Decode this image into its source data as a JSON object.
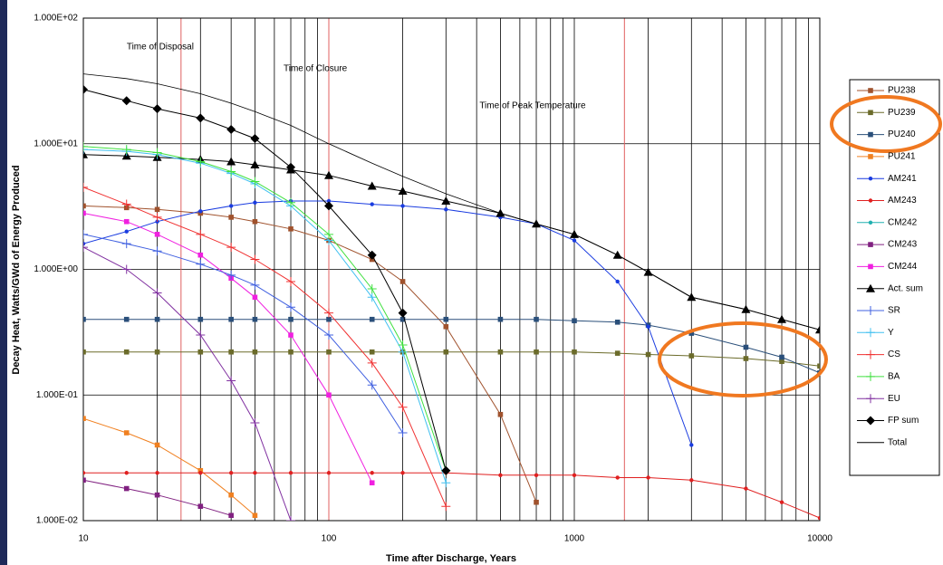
{
  "chart_data": {
    "type": "line",
    "log_x": true,
    "log_y": true,
    "xlabel": "Time after Discharge, Years",
    "ylabel": "Decay Heat, Watts/GWd of Energy Produced",
    "annotations": [
      {
        "text": "Time of Disposal",
        "x": 25
      },
      {
        "text": "Time of Closure",
        "x": 100
      },
      {
        "text": "Time of Peak Temperature",
        "x": 1600
      }
    ],
    "xlim": [
      10,
      10000
    ],
    "ylim": [
      0.01,
      100
    ],
    "xticks": [
      10,
      100,
      1000,
      10000
    ],
    "yticks": [
      {
        "value": 100,
        "label": "1.000E+02"
      },
      {
        "value": 10,
        "label": "1.000E+01"
      },
      {
        "value": 1,
        "label": "1.000E+00"
      },
      {
        "value": 0.1,
        "label": "1.000E-01"
      },
      {
        "value": 0.01,
        "label": "1.000E-02"
      }
    ],
    "x_minor_grid": [
      20,
      30,
      40,
      50,
      60,
      70,
      80,
      90,
      200,
      300,
      400,
      500,
      600,
      700,
      800,
      900,
      2000,
      3000,
      4000,
      5000,
      6000,
      7000,
      8000,
      9000
    ],
    "reference_lines": {
      "color": "#e06060",
      "x": [
        25,
        100,
        1600
      ]
    },
    "grid": true,
    "legend": "right",
    "x": [
      10,
      15,
      20,
      30,
      40,
      50,
      70,
      100,
      150,
      200,
      300,
      500,
      700,
      1000,
      1500,
      2000,
      3000,
      5000,
      7000,
      10000
    ],
    "series": [
      {
        "name": "PU238",
        "color": "#a0522d",
        "marker": "square",
        "values": [
          3.2,
          3.1,
          3.0,
          2.8,
          2.6,
          2.4,
          2.1,
          1.7,
          1.2,
          0.8,
          0.35,
          0.07,
          0.014,
          null,
          null,
          null,
          null,
          null,
          null,
          null
        ]
      },
      {
        "name": "PU239",
        "color": "#6b6b2a",
        "marker": "square",
        "values": [
          0.22,
          0.22,
          0.22,
          0.22,
          0.22,
          0.22,
          0.22,
          0.22,
          0.22,
          0.22,
          0.22,
          0.22,
          0.22,
          0.22,
          0.215,
          0.21,
          0.205,
          0.195,
          0.185,
          0.17
        ]
      },
      {
        "name": "PU240",
        "color": "#2a4f7a",
        "marker": "square",
        "values": [
          0.4,
          0.4,
          0.4,
          0.4,
          0.4,
          0.4,
          0.4,
          0.4,
          0.4,
          0.4,
          0.4,
          0.4,
          0.4,
          0.39,
          0.38,
          0.36,
          0.31,
          0.24,
          0.2,
          0.15
        ]
      },
      {
        "name": "PU241",
        "color": "#f08020",
        "marker": "square",
        "values": [
          0.065,
          0.05,
          0.04,
          0.025,
          0.016,
          0.011,
          null,
          null,
          null,
          null,
          null,
          null,
          null,
          null,
          null,
          null,
          null,
          null,
          null,
          null
        ]
      },
      {
        "name": "AM241",
        "color": "#1a3ce0",
        "marker": "circle",
        "values": [
          1.6,
          2.0,
          2.4,
          2.9,
          3.2,
          3.4,
          3.5,
          3.5,
          3.3,
          3.2,
          3.0,
          2.6,
          2.3,
          1.7,
          0.8,
          0.35,
          0.04,
          null,
          null,
          null
        ]
      },
      {
        "name": "AM243",
        "color": "#e02020",
        "marker": "circle",
        "values": [
          0.024,
          0.024,
          0.024,
          0.024,
          0.024,
          0.024,
          0.024,
          0.024,
          0.024,
          0.024,
          0.024,
          0.023,
          0.023,
          0.023,
          0.022,
          0.022,
          0.021,
          0.018,
          0.014,
          0.0105
        ]
      },
      {
        "name": "CM242",
        "color": "#20b0b0",
        "marker": "circle",
        "values": [
          null,
          null,
          null,
          null,
          null,
          null,
          null,
          null,
          null,
          null,
          null,
          null,
          null,
          null,
          null,
          null,
          null,
          null,
          null,
          null
        ]
      },
      {
        "name": "CM243",
        "color": "#802080",
        "marker": "square",
        "values": [
          0.021,
          0.018,
          0.016,
          0.013,
          0.011,
          null,
          null,
          null,
          null,
          null,
          null,
          null,
          null,
          null,
          null,
          null,
          null,
          null,
          null,
          null
        ]
      },
      {
        "name": "CM244",
        "color": "#f020e0",
        "marker": "square",
        "values": [
          2.8,
          2.4,
          1.9,
          1.3,
          0.85,
          0.6,
          0.3,
          0.1,
          0.02,
          null,
          null,
          null,
          null,
          null,
          null,
          null,
          null,
          null,
          null,
          null
        ]
      },
      {
        "name": "Act. sum",
        "color": "#000000",
        "marker": "triangle",
        "values": [
          8.2,
          8.0,
          7.8,
          7.5,
          7.2,
          6.8,
          6.2,
          5.6,
          4.6,
          4.2,
          3.5,
          2.8,
          2.3,
          1.9,
          1.3,
          0.95,
          0.6,
          0.48,
          0.4,
          0.33
        ]
      },
      {
        "name": "SR",
        "color": "#4060e0",
        "marker": "plus",
        "values": [
          1.9,
          1.6,
          1.4,
          1.1,
          0.9,
          0.75,
          0.5,
          0.3,
          0.12,
          0.05,
          null,
          null,
          null,
          null,
          null,
          null,
          null,
          null,
          null,
          null
        ]
      },
      {
        "name": "Y",
        "color": "#40c0f0",
        "marker": "plus",
        "values": [
          9.0,
          8.7,
          8.2,
          7.0,
          5.8,
          4.8,
          3.2,
          1.7,
          0.6,
          0.22,
          0.02,
          null,
          null,
          null,
          null,
          null,
          null,
          null,
          null,
          null
        ]
      },
      {
        "name": "CS",
        "color": "#f03030",
        "marker": "plus",
        "values": [
          4.5,
          3.3,
          2.6,
          1.9,
          1.5,
          1.2,
          0.8,
          0.45,
          0.18,
          0.08,
          0.013,
          null,
          null,
          null,
          null,
          null,
          null,
          null,
          null,
          null
        ]
      },
      {
        "name": "BA",
        "color": "#40e040",
        "marker": "plus",
        "values": [
          9.5,
          9.0,
          8.5,
          7.2,
          6.0,
          5.0,
          3.4,
          1.9,
          0.7,
          0.25,
          0.025,
          null,
          null,
          null,
          null,
          null,
          null,
          null,
          null,
          null
        ]
      },
      {
        "name": "EU",
        "color": "#8030a0",
        "marker": "plus",
        "values": [
          1.5,
          1.0,
          0.65,
          0.3,
          0.13,
          0.06,
          0.01,
          null,
          null,
          null,
          null,
          null,
          null,
          null,
          null,
          null,
          null,
          null,
          null,
          null
        ]
      },
      {
        "name": "FP sum",
        "color": "#000000",
        "marker": "diamond",
        "values": [
          27,
          22,
          19,
          16,
          13,
          11,
          6.5,
          3.2,
          1.3,
          0.45,
          0.025,
          null,
          null,
          null,
          null,
          null,
          null,
          null,
          null,
          null
        ]
      },
      {
        "name": "Total",
        "color": "#000000",
        "marker": "none",
        "values": [
          36,
          33,
          30,
          25,
          21,
          18,
          14,
          10,
          7,
          5.5,
          4,
          2.8,
          2.3,
          1.9,
          1.3,
          0.95,
          0.6,
          0.48,
          0.4,
          0.33
        ]
      }
    ]
  }
}
